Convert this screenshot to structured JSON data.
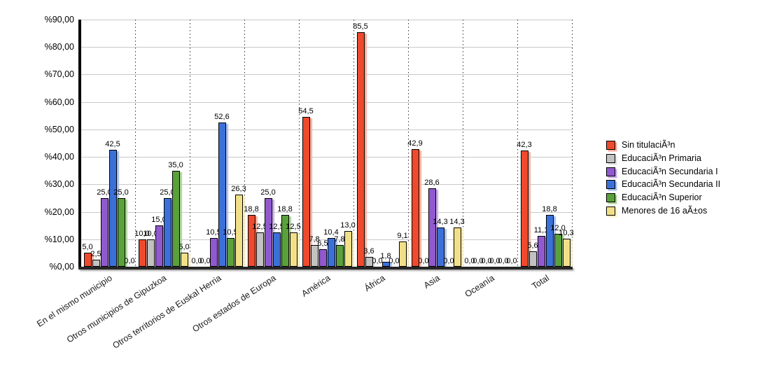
{
  "chart_data": {
    "type": "bar",
    "title": "",
    "xlabel": "",
    "ylabel": "",
    "ylim": [
      0,
      90
    ],
    "y_tick_step": 10,
    "y_tick_labels": [
      "%90,00",
      "%80,00",
      "%70,00",
      "%60,00",
      "%50,00",
      "%40,00",
      "%30,00",
      "%20,00",
      "%10,00",
      "%0,00"
    ],
    "grid": "horizontal-solid-plus-vertical-dotted-category-separators",
    "legend_position": "right",
    "decimal_separator": ",",
    "categories": [
      "En el mismo municipio",
      "Otros municipios de Gipuzkoa",
      "Otros territorios de Euskal Herria",
      "Otros estados de Europa",
      "América",
      "África",
      "Asia",
      "Oceanía",
      "Total"
    ],
    "series": [
      {
        "name": "Sin titulaciÃ³n",
        "color": "#ee4a2d",
        "shadow_color": "#f8ae9c",
        "values": [
          5.0,
          10.0,
          0.0,
          18.8,
          54.5,
          85.5,
          42.9,
          0.0,
          42.3
        ]
      },
      {
        "name": "EducaciÃ³n Primaria",
        "color": "#c2c2c2",
        "shadow_color": "#e2e2e2",
        "values": [
          2.5,
          10.0,
          0.0,
          12.5,
          7.8,
          3.6,
          0.0,
          0.0,
          5.6
        ]
      },
      {
        "name": "EducaciÃ³n Secundaria I",
        "color": "#9159ce",
        "shadow_color": "#c9aae8",
        "values": [
          25.0,
          15.0,
          10.5,
          25.0,
          6.5,
          0.0,
          28.6,
          0.0,
          11.1
        ]
      },
      {
        "name": "EducaciÃ³n Secundaria II",
        "color": "#3c70d9",
        "shadow_color": "#a6beef",
        "values": [
          42.5,
          25.0,
          52.6,
          12.5,
          10.4,
          1.8,
          14.3,
          0.0,
          18.8
        ]
      },
      {
        "name": "EducaciÃ³n Superior",
        "color": "#5aa13c",
        "shadow_color": "#b0d3a0",
        "values": [
          25.0,
          35.0,
          10.5,
          18.8,
          7.8,
          0.0,
          0.0,
          0.0,
          12.0
        ]
      },
      {
        "name": "Menores de 16 aÃ±os",
        "color": "#f2e089",
        "shadow_color": "#f9f0c6",
        "values": [
          0.0,
          5.0,
          26.3,
          12.5,
          13.0,
          9.1,
          14.3,
          0.0,
          10.3
        ]
      }
    ]
  }
}
